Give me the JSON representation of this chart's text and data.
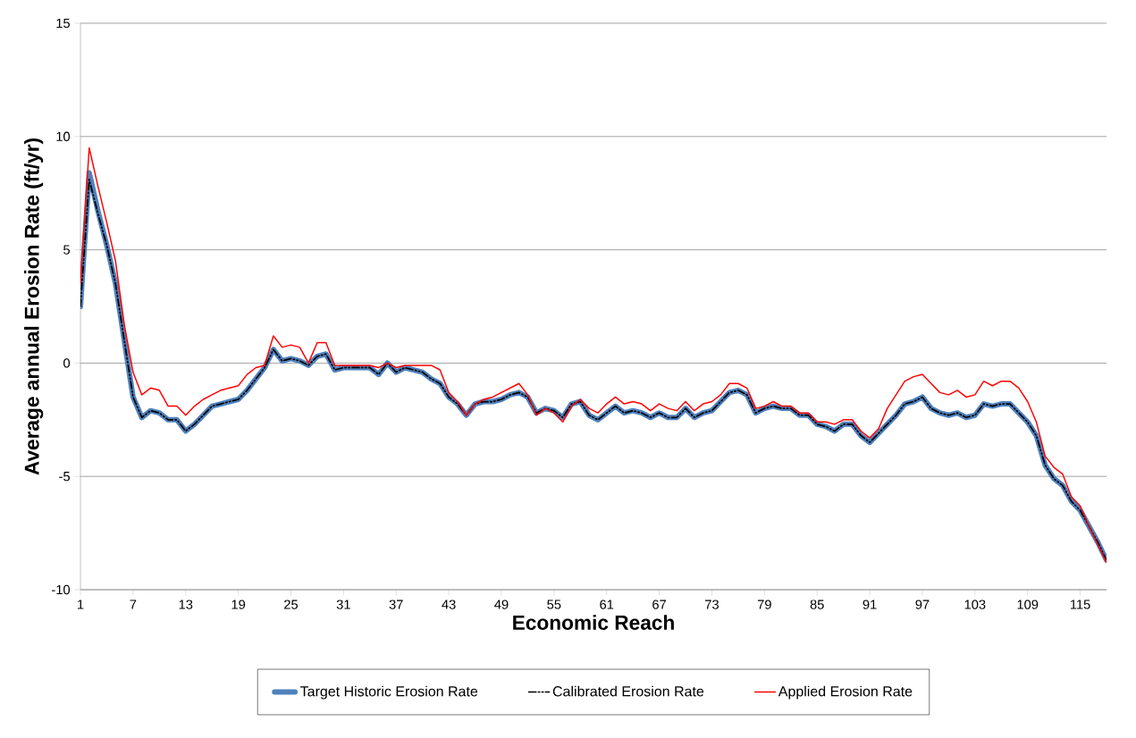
{
  "chart_data": {
    "type": "line",
    "xlabel": "Economic Reach",
    "ylabel": "Average annual Erosion Rate (ft/yr)",
    "categories": [
      "1",
      null,
      null,
      null,
      null,
      null,
      "7",
      null,
      null,
      null,
      null,
      null,
      "13",
      null,
      null,
      null,
      null,
      null,
      "19",
      null,
      null,
      null,
      null,
      null,
      "25",
      null,
      null,
      null,
      null,
      null,
      "31",
      null,
      null,
      null,
      null,
      null,
      "37",
      null,
      null,
      null,
      null,
      null,
      "43",
      null,
      null,
      null,
      null,
      null,
      "49",
      null,
      null,
      null,
      null,
      null,
      "55",
      null,
      null,
      null,
      null,
      null,
      "61",
      null,
      null,
      null,
      null,
      null,
      "67",
      null,
      null,
      null,
      null,
      null,
      "73",
      null,
      null,
      null,
      null,
      null,
      "79",
      null,
      null,
      null,
      null,
      null,
      "85",
      null,
      null,
      null,
      null,
      null,
      "91",
      null,
      null,
      null,
      null,
      null,
      "97",
      null,
      null,
      null,
      null,
      null,
      "103",
      null,
      null,
      null,
      null,
      null,
      "109",
      null,
      null,
      null,
      null,
      null,
      "115",
      null,
      null,
      null
    ],
    "ylim": [
      -10,
      15
    ],
    "yticks": [
      -10,
      -5,
      0,
      5,
      10,
      15
    ],
    "grid": "y",
    "legend": "bottom",
    "marker": "none",
    "series": [
      {
        "name": "Target Historic Erosion Rate",
        "color": "#4f81bd",
        "line_style": "solid",
        "values": [
          2.5,
          8.4,
          6.7,
          5.2,
          3.5,
          1.0,
          -1.5,
          -2.4,
          -2.1,
          -2.2,
          -2.5,
          -2.5,
          -3.0,
          -2.7,
          -2.3,
          -1.9,
          -1.8,
          -1.7,
          -1.6,
          -1.2,
          -0.7,
          -0.2,
          0.6,
          0.1,
          0.2,
          0.1,
          -0.1,
          0.3,
          0.4,
          -0.3,
          -0.2,
          -0.2,
          -0.2,
          -0.2,
          -0.5,
          0.0,
          -0.4,
          -0.2,
          -0.3,
          -0.4,
          -0.7,
          -0.9,
          -1.5,
          -1.8,
          -2.3,
          -1.8,
          -1.7,
          -1.7,
          -1.6,
          -1.4,
          -1.3,
          -1.5,
          -2.2,
          -2.0,
          -2.1,
          -2.4,
          -1.8,
          -1.7,
          -2.3,
          -2.5,
          -2.2,
          -1.9,
          -2.2,
          -2.1,
          -2.2,
          -2.4,
          -2.2,
          -2.4,
          -2.4,
          -2.0,
          -2.4,
          -2.2,
          -2.1,
          -1.7,
          -1.3,
          -1.2,
          -1.4,
          -2.2,
          -2.0,
          -1.9,
          -2.0,
          -2.0,
          -2.3,
          -2.3,
          -2.7,
          -2.8,
          -3.0,
          -2.7,
          -2.7,
          -3.2,
          -3.5,
          -3.1,
          -2.7,
          -2.3,
          -1.8,
          -1.7,
          -1.5,
          -2.0,
          -2.2,
          -2.3,
          -2.2,
          -2.4,
          -2.3,
          -1.8,
          -1.9,
          -1.8,
          -1.8,
          -2.2,
          -2.6,
          -3.2,
          -4.5,
          -5.1,
          -5.4,
          -6.1,
          -6.5,
          -7.2,
          -7.9,
          -8.7
        ]
      },
      {
        "name": "Calibrated Erosion Rate",
        "color": "#000000",
        "line_style": "dashed",
        "values": [
          2.5,
          8.1,
          6.6,
          5.2,
          3.5,
          1.0,
          -1.5,
          -2.4,
          -2.1,
          -2.2,
          -2.5,
          -2.5,
          -3.0,
          -2.7,
          -2.3,
          -1.9,
          -1.8,
          -1.7,
          -1.6,
          -1.2,
          -0.7,
          -0.2,
          0.6,
          0.1,
          0.2,
          0.1,
          -0.1,
          0.3,
          0.4,
          -0.3,
          -0.2,
          -0.2,
          -0.2,
          -0.2,
          -0.5,
          0.0,
          -0.4,
          -0.2,
          -0.3,
          -0.4,
          -0.7,
          -0.9,
          -1.5,
          -1.8,
          -2.3,
          -1.8,
          -1.7,
          -1.7,
          -1.6,
          -1.4,
          -1.3,
          -1.5,
          -2.2,
          -2.0,
          -2.1,
          -2.4,
          -1.8,
          -1.7,
          -2.3,
          -2.5,
          -2.2,
          -1.9,
          -2.2,
          -2.1,
          -2.2,
          -2.4,
          -2.2,
          -2.4,
          -2.4,
          -2.0,
          -2.4,
          -2.2,
          -2.1,
          -1.7,
          -1.3,
          -1.2,
          -1.4,
          -2.2,
          -2.0,
          -1.9,
          -2.0,
          -2.0,
          -2.3,
          -2.3,
          -2.7,
          -2.8,
          -3.0,
          -2.7,
          -2.7,
          -3.2,
          -3.5,
          -3.1,
          -2.7,
          -2.3,
          -1.8,
          -1.7,
          -1.5,
          -2.0,
          -2.2,
          -2.3,
          -2.2,
          -2.4,
          -2.3,
          -1.8,
          -1.9,
          -1.8,
          -1.8,
          -2.2,
          -2.6,
          -3.2,
          -4.5,
          -5.1,
          -5.4,
          -6.1,
          -6.5,
          -7.2,
          -7.9,
          -8.7
        ]
      },
      {
        "name": "Applied Erosion Rate",
        "color": "#ff0000",
        "line_style": "solid",
        "values": [
          3.5,
          9.5,
          7.8,
          6.2,
          4.5,
          1.7,
          -0.4,
          -1.4,
          -1.1,
          -1.2,
          -1.9,
          -1.9,
          -2.3,
          -1.9,
          -1.6,
          -1.4,
          -1.2,
          -1.1,
          -1.0,
          -0.5,
          -0.2,
          -0.1,
          1.2,
          0.7,
          0.8,
          0.7,
          0.0,
          0.9,
          0.9,
          -0.1,
          -0.1,
          -0.1,
          -0.1,
          -0.1,
          -0.2,
          0.0,
          -0.2,
          -0.1,
          -0.1,
          -0.1,
          -0.1,
          -0.3,
          -1.3,
          -1.7,
          -2.3,
          -1.8,
          -1.6,
          -1.5,
          -1.3,
          -1.1,
          -0.9,
          -1.4,
          -2.3,
          -2.0,
          -2.2,
          -2.6,
          -1.9,
          -1.6,
          -2.0,
          -2.2,
          -1.8,
          -1.5,
          -1.8,
          -1.7,
          -1.8,
          -2.1,
          -1.8,
          -2.0,
          -2.1,
          -1.7,
          -2.1,
          -1.8,
          -1.7,
          -1.4,
          -0.9,
          -0.9,
          -1.1,
          -2.0,
          -1.9,
          -1.7,
          -1.9,
          -1.9,
          -2.2,
          -2.2,
          -2.6,
          -2.6,
          -2.7,
          -2.5,
          -2.5,
          -3.0,
          -3.3,
          -2.9,
          -2.0,
          -1.4,
          -0.8,
          -0.6,
          -0.5,
          -0.9,
          -1.3,
          -1.4,
          -1.2,
          -1.5,
          -1.4,
          -0.8,
          -1.0,
          -0.8,
          -0.8,
          -1.1,
          -1.7,
          -2.6,
          -4.1,
          -4.6,
          -4.9,
          -5.9,
          -6.3,
          -7.2,
          -8.0,
          -8.8
        ]
      }
    ]
  }
}
